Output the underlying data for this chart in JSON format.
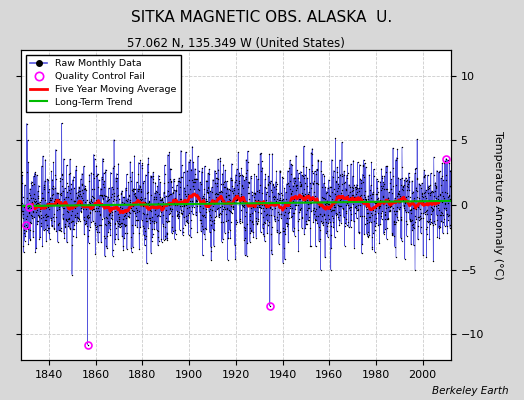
{
  "title": "SITKA MAGNETIC OBS. ALASKA  U.",
  "subtitle": "57.062 N, 135.349 W (United States)",
  "ylabel": "Temperature Anomaly (°C)",
  "credit": "Berkeley Earth",
  "x_start": 1828,
  "x_end": 2012,
  "xlim_left": 1828,
  "xlim_right": 2012,
  "ylim": [
    -12,
    12
  ],
  "yticks": [
    -10,
    -5,
    0,
    5,
    10
  ],
  "xticks": [
    1840,
    1860,
    1880,
    1900,
    1920,
    1940,
    1960,
    1980,
    2000
  ],
  "bg_color": "#d8d8d8",
  "plot_bg_color": "#ffffff",
  "raw_line_color": "#5555dd",
  "raw_dot_color": "#000000",
  "qc_fail_color": "#ff00ff",
  "moving_avg_color": "#ff0000",
  "trend_color": "#00bb00",
  "seed": 42
}
